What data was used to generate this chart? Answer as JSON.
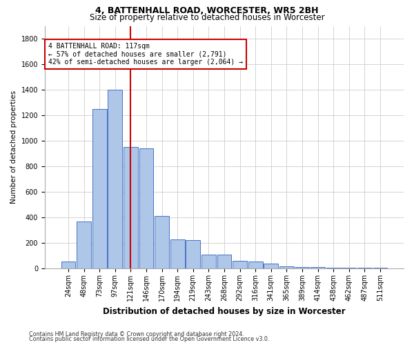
{
  "title_line1": "4, BATTENHALL ROAD, WORCESTER, WR5 2BH",
  "title_line2": "Size of property relative to detached houses in Worcester",
  "xlabel": "Distribution of detached houses by size in Worcester",
  "ylabel": "Number of detached properties",
  "categories": [
    "24sqm",
    "48sqm",
    "73sqm",
    "97sqm",
    "121sqm",
    "146sqm",
    "170sqm",
    "194sqm",
    "219sqm",
    "243sqm",
    "268sqm",
    "292sqm",
    "316sqm",
    "341sqm",
    "365sqm",
    "389sqm",
    "414sqm",
    "438sqm",
    "462sqm",
    "487sqm",
    "511sqm"
  ],
  "values": [
    55,
    370,
    1250,
    1400,
    950,
    940,
    410,
    230,
    225,
    110,
    110,
    60,
    55,
    40,
    15,
    10,
    10,
    5,
    5,
    5,
    5
  ],
  "bar_color": "#aec6e8",
  "bar_edge_color": "#4472c4",
  "vline_index": 4,
  "vline_color": "#cc0000",
  "annotation_text": "4 BATTENHALL ROAD: 117sqm\n← 57% of detached houses are smaller (2,791)\n42% of semi-detached houses are larger (2,064) →",
  "annotation_box_color": "#cc0000",
  "ylim": [
    0,
    1900
  ],
  "yticks": [
    0,
    200,
    400,
    600,
    800,
    1000,
    1200,
    1400,
    1600,
    1800
  ],
  "footnote_line1": "Contains HM Land Registry data © Crown copyright and database right 2024.",
  "footnote_line2": "Contains public sector information licensed under the Open Government Licence v3.0.",
  "bg_color": "#ffffff",
  "grid_color": "#cccccc",
  "title1_fontsize": 9,
  "title2_fontsize": 8.5,
  "ylabel_fontsize": 7.5,
  "xlabel_fontsize": 8.5,
  "tick_fontsize": 7,
  "annot_fontsize": 7,
  "footnote_fontsize": 5.8
}
